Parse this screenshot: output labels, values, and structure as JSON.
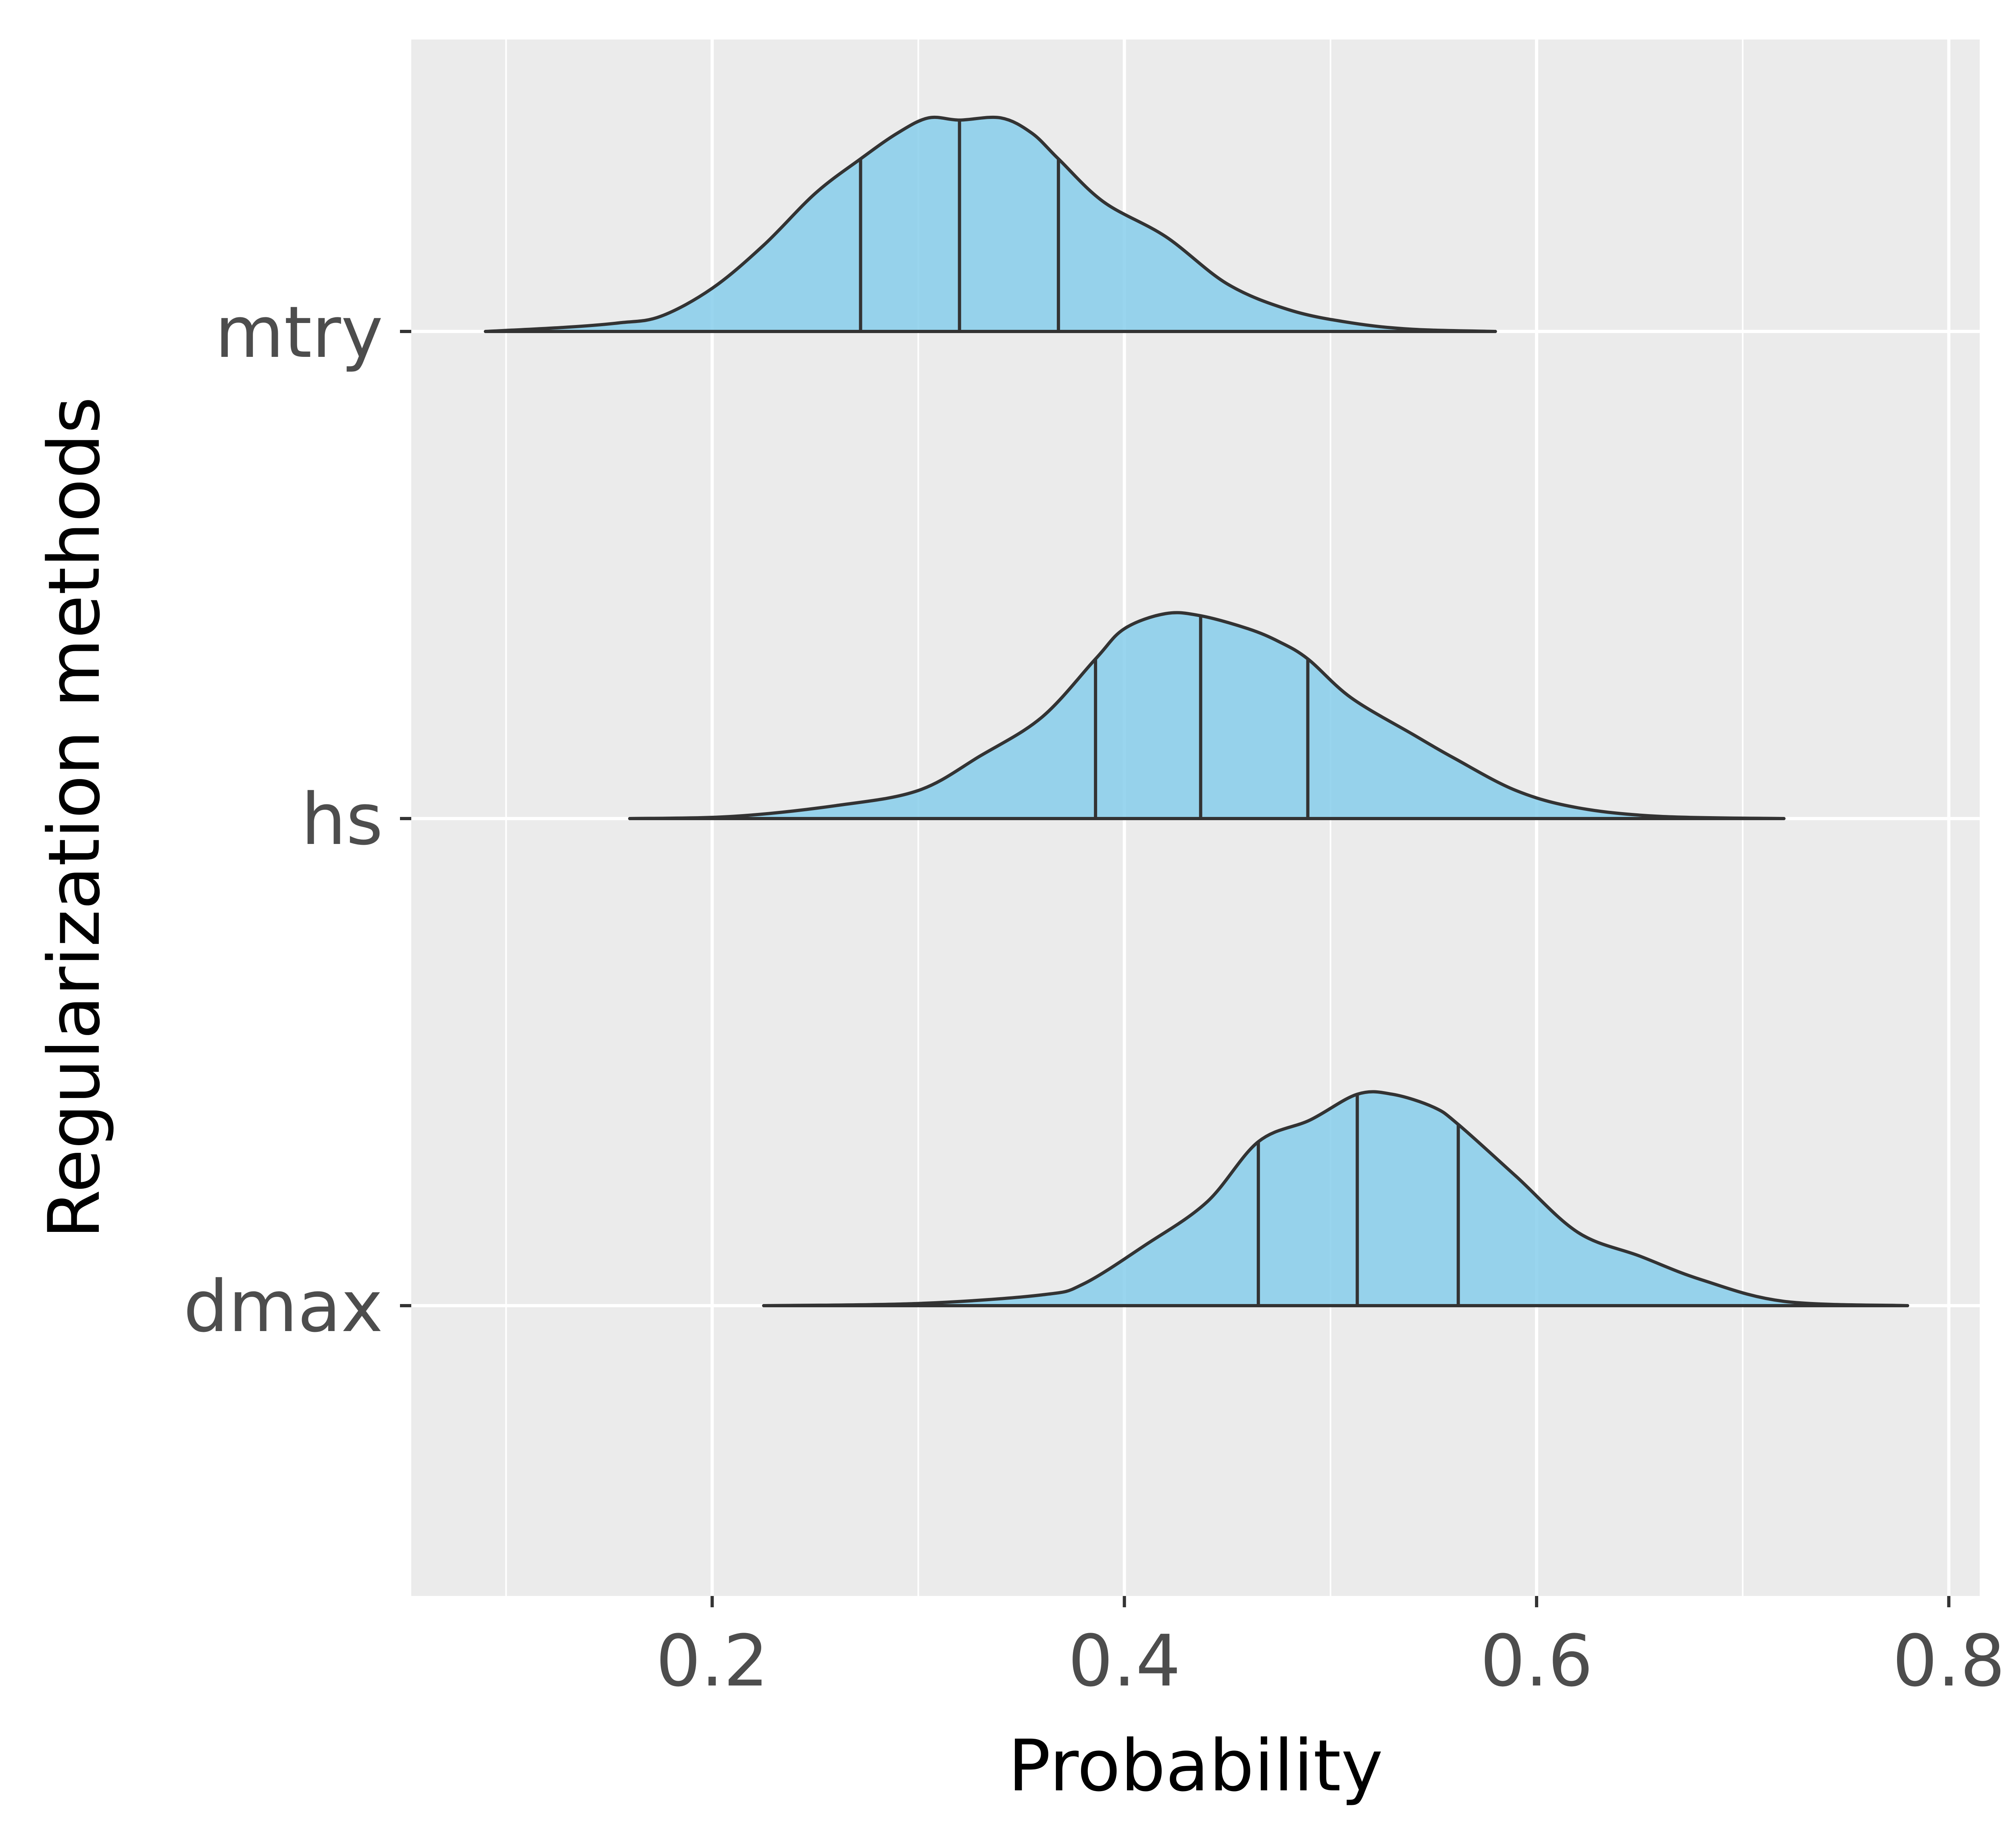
{
  "chart_data": {
    "type": "ridgeline",
    "xlabel": "Probability",
    "ylabel": "Regularization methods",
    "xlim": [
      0.054,
      0.815
    ],
    "x_ticks": [
      0.2,
      0.4,
      0.6,
      0.8
    ],
    "x_tick_labels": [
      "0.2",
      "0.4",
      "0.6",
      "0.8"
    ],
    "categories": [
      "mtry",
      "hs",
      "dmax"
    ],
    "grid": true,
    "legend": "none",
    "colors": {
      "panel_background": "#EBEBEB",
      "grid": "#FFFFFF",
      "fill": "#87CEEB",
      "outline": "#333333",
      "tick_text": "#4D4D4D",
      "axis_title": "#000000"
    },
    "series": [
      {
        "category": "mtry",
        "quantiles": [
          0.272,
          0.32,
          0.368
        ],
        "density": [
          [
            0.09,
            0
          ],
          [
            0.13,
            0.02
          ],
          [
            0.155,
            0.04
          ],
          [
            0.175,
            0.07
          ],
          [
            0.2,
            0.2
          ],
          [
            0.225,
            0.4
          ],
          [
            0.25,
            0.64
          ],
          [
            0.272,
            0.8
          ],
          [
            0.29,
            0.92
          ],
          [
            0.305,
            0.99
          ],
          [
            0.32,
            0.98
          ],
          [
            0.34,
            0.99
          ],
          [
            0.355,
            0.92
          ],
          [
            0.368,
            0.8
          ],
          [
            0.39,
            0.6
          ],
          [
            0.42,
            0.44
          ],
          [
            0.45,
            0.22
          ],
          [
            0.48,
            0.1
          ],
          [
            0.51,
            0.04
          ],
          [
            0.54,
            0.01
          ],
          [
            0.58,
            0
          ]
        ]
      },
      {
        "category": "hs",
        "quantiles": [
          0.386,
          0.437,
          0.489
        ],
        "density": [
          [
            0.16,
            0
          ],
          [
            0.21,
            0.01
          ],
          [
            0.26,
            0.06
          ],
          [
            0.3,
            0.13
          ],
          [
            0.33,
            0.29
          ],
          [
            0.36,
            0.47
          ],
          [
            0.386,
            0.74
          ],
          [
            0.4,
            0.88
          ],
          [
            0.42,
            0.95
          ],
          [
            0.437,
            0.94
          ],
          [
            0.46,
            0.88
          ],
          [
            0.475,
            0.82
          ],
          [
            0.489,
            0.74
          ],
          [
            0.51,
            0.56
          ],
          [
            0.54,
            0.39
          ],
          [
            0.56,
            0.28
          ],
          [
            0.59,
            0.13
          ],
          [
            0.62,
            0.05
          ],
          [
            0.66,
            0.01
          ],
          [
            0.72,
            0
          ]
        ]
      },
      {
        "category": "dmax",
        "quantiles": [
          0.465,
          0.513,
          0.562
        ],
        "density": [
          [
            0.225,
            0
          ],
          [
            0.3,
            0.01
          ],
          [
            0.36,
            0.05
          ],
          [
            0.38,
            0.1
          ],
          [
            0.41,
            0.28
          ],
          [
            0.44,
            0.48
          ],
          [
            0.465,
            0.76
          ],
          [
            0.49,
            0.86
          ],
          [
            0.513,
            0.98
          ],
          [
            0.53,
            0.98
          ],
          [
            0.55,
            0.92
          ],
          [
            0.562,
            0.84
          ],
          [
            0.59,
            0.6
          ],
          [
            0.62,
            0.34
          ],
          [
            0.65,
            0.23
          ],
          [
            0.68,
            0.12
          ],
          [
            0.72,
            0.02
          ],
          [
            0.78,
            0
          ]
        ]
      }
    ]
  }
}
